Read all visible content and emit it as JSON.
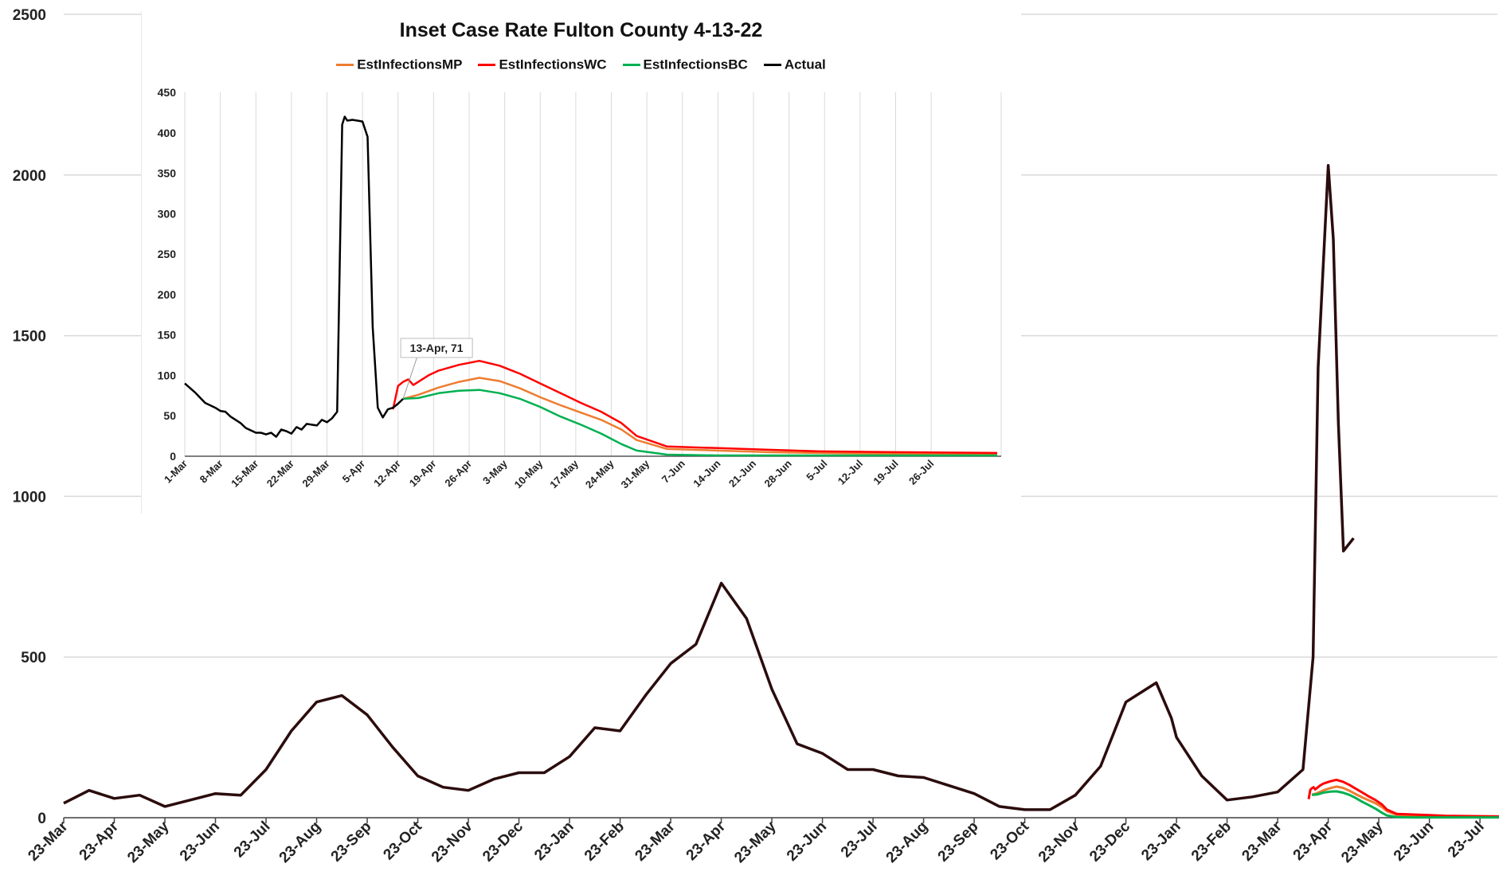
{
  "chart_data": [
    {
      "type": "line",
      "title": "",
      "xlabel": "",
      "ylabel": "",
      "ylim": [
        0,
        2500
      ],
      "yticks": [
        0,
        500,
        1000,
        1500,
        2000,
        2500
      ],
      "x_tick_labels": [
        "23-Mar",
        "23-Apr",
        "23-May",
        "23-Jun",
        "23-Jul",
        "23-Aug",
        "23-Sep",
        "23-Oct",
        "23-Nov",
        "23-Dec",
        "23-Jan",
        "23-Feb",
        "23-Mar",
        "23-Apr",
        "23-May",
        "23-Jun",
        "23-Jul",
        "23-Aug",
        "23-Sep",
        "23-Oct",
        "23-Nov",
        "23-Dec",
        "23-Jan",
        "23-Feb",
        "23-Mar",
        "23-Apr",
        "23-May",
        "23-Jun",
        "23-Jul"
      ],
      "grid": "horizontal",
      "legend": "none",
      "series": [
        {
          "color": "#2b0c0c",
          "x": [
            0,
            0.5,
            1,
            1.5,
            2,
            2.5,
            3,
            3.5,
            4,
            4.5,
            5,
            5.5,
            6,
            6.5,
            7,
            7.5,
            8,
            8.5,
            9,
            9.5,
            10,
            10.5,
            11,
            11.5,
            12,
            12.5,
            13,
            13.5,
            14,
            14.5,
            15,
            15.5,
            16,
            16.5,
            17,
            17.5,
            18,
            18.5,
            19,
            19.5,
            20,
            20.5,
            21,
            21.3,
            21.6,
            21.9,
            22,
            22.5,
            23,
            23.5,
            24,
            24.5,
            24.7,
            24.8,
            25,
            25.1,
            25.2,
            25.3,
            25.5
          ],
          "values": [
            45,
            85,
            60,
            70,
            35,
            55,
            75,
            70,
            150,
            270,
            360,
            380,
            320,
            220,
            130,
            95,
            85,
            120,
            140,
            140,
            190,
            280,
            270,
            380,
            480,
            540,
            730,
            620,
            400,
            230,
            200,
            150,
            150,
            130,
            125,
            100,
            75,
            35,
            25,
            25,
            70,
            160,
            360,
            390,
            420,
            310,
            250,
            130,
            55,
            65,
            80,
            150,
            500,
            1400,
            2030,
            1800,
            1230,
            830,
            870
          ]
        }
      ]
    },
    {
      "type": "line",
      "title": "Inset Case Rate Fulton County 4-13-22",
      "xlabel": "",
      "ylabel": "",
      "ylim": [
        0,
        450
      ],
      "yticks": [
        0,
        50,
        100,
        150,
        200,
        250,
        300,
        350,
        400,
        450
      ],
      "x_tick_labels": [
        "1-Mar",
        "8-Mar",
        "15-Mar",
        "22-Mar",
        "29-Mar",
        "5-Apr",
        "12-Apr",
        "19-Apr",
        "26-Apr",
        "3-May",
        "10-May",
        "17-May",
        "24-May",
        "31-May",
        "7-Jun",
        "14-Jun",
        "21-Jun",
        "28-Jun",
        "5-Jul",
        "12-Jul",
        "19-Jul",
        "26-Jul"
      ],
      "grid": "vertical",
      "legend": "top-center",
      "annotation": {
        "text": "13-Apr, 71",
        "x": 43,
        "y": 71
      },
      "series": [
        {
          "name": "EstInfectionsMP",
          "color": "#ed7d31",
          "x": [
            43,
            46,
            50,
            54,
            58,
            62,
            66,
            70,
            74,
            78,
            82,
            86,
            89,
            95,
            105,
            115,
            125,
            140,
            160
          ],
          "values": [
            71,
            76,
            85,
            92,
            97,
            93,
            84,
            73,
            63,
            54,
            45,
            33,
            20,
            9,
            7,
            5,
            4,
            3,
            3
          ]
        },
        {
          "name": "EstInfectionsWC",
          "color": "#ff0000",
          "x": [
            41,
            42,
            43,
            44,
            45,
            48,
            50,
            54,
            58,
            62,
            66,
            70,
            74,
            78,
            82,
            86,
            89,
            95,
            105,
            115,
            125,
            140,
            160
          ],
          "values": [
            58,
            87,
            92,
            95,
            88,
            100,
            106,
            113,
            118,
            112,
            102,
            90,
            78,
            66,
            55,
            41,
            25,
            12,
            10,
            8,
            6,
            5,
            4
          ]
        },
        {
          "name": "EstInfectionsBC",
          "color": "#00b050",
          "x": [
            43,
            46,
            50,
            54,
            58,
            62,
            66,
            70,
            74,
            78,
            82,
            86,
            89,
            95,
            105,
            115,
            125,
            140,
            160
          ],
          "values": [
            71,
            72,
            78,
            81,
            82,
            78,
            71,
            61,
            49,
            39,
            28,
            15,
            7,
            2,
            1,
            1,
            1,
            1,
            1
          ]
        },
        {
          "name": "Actual",
          "color": "#000000",
          "x": [
            0,
            2,
            4,
            6,
            7,
            8,
            9,
            10,
            11,
            12,
            13,
            14,
            15,
            16,
            17,
            18,
            19,
            20,
            21,
            22,
            23,
            24,
            25,
            26,
            27,
            28,
            29,
            30,
            31,
            31.5,
            32,
            33,
            34,
            35,
            36,
            37,
            38,
            39,
            40,
            41,
            42,
            43
          ],
          "values": [
            90,
            79,
            66,
            60,
            56,
            55,
            49,
            45,
            41,
            35,
            32,
            29,
            29,
            27,
            29,
            24,
            33,
            31,
            28,
            36,
            33,
            40,
            39,
            38,
            45,
            42,
            47,
            55,
            410,
            420,
            415,
            416,
            415,
            414,
            395,
            160,
            60,
            48,
            58,
            60,
            65,
            71
          ]
        }
      ]
    }
  ]
}
